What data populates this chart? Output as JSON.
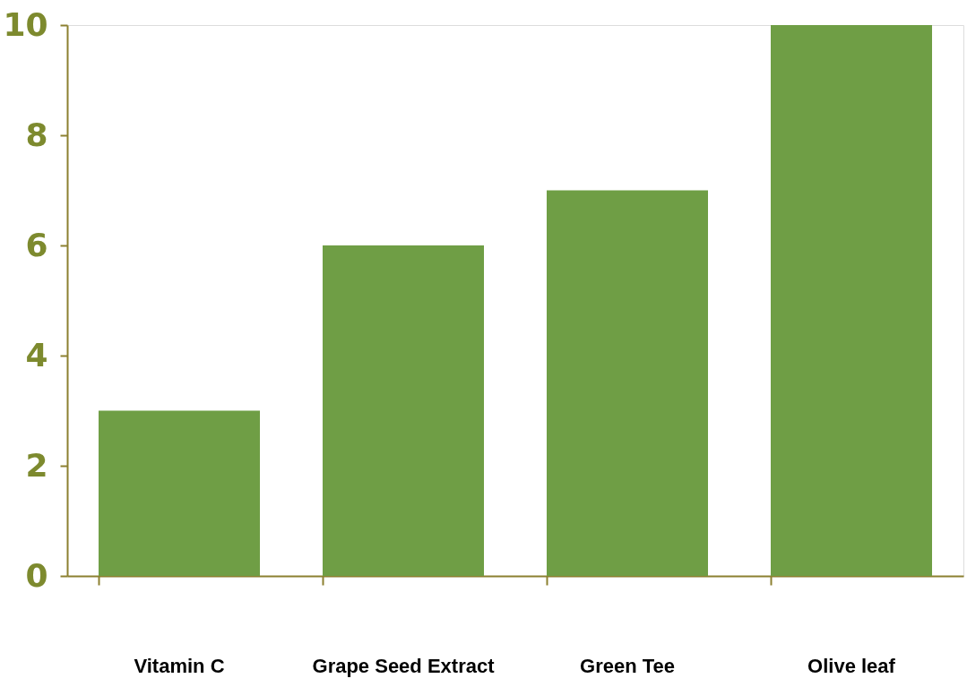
{
  "chart_data": {
    "type": "bar",
    "categories": [
      "Vitamin C",
      "Grape Seed Extract",
      "Green Tee",
      "Olive leaf"
    ],
    "values": [
      3,
      6,
      7,
      10
    ],
    "color": "#6f9e45",
    "ylim": [
      0,
      10
    ],
    "yticks": [
      0,
      2,
      4,
      6,
      8,
      10
    ],
    "grid": false
  }
}
